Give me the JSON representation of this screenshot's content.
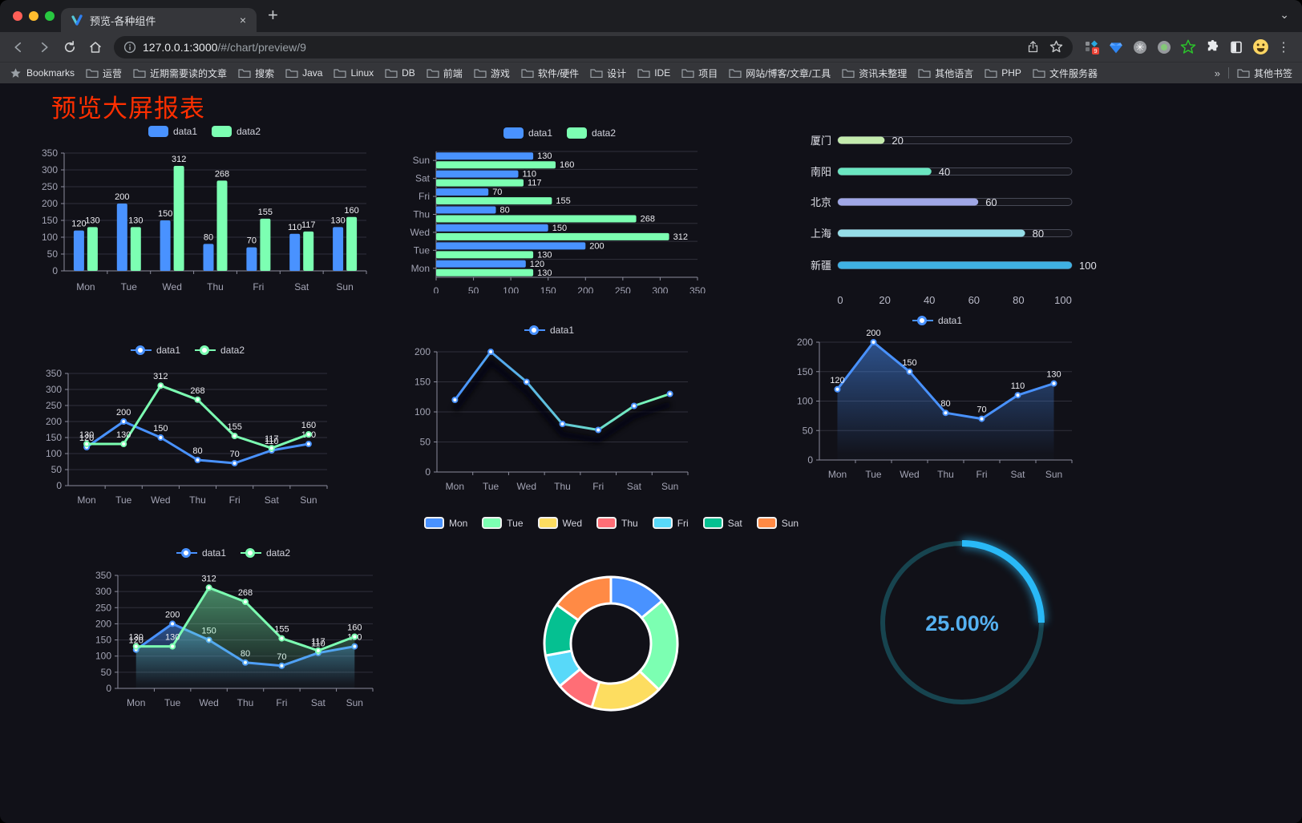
{
  "browser": {
    "tab": {
      "title": "预览-各种组件",
      "close": "×",
      "new_tab": "+",
      "chevron": "⌄"
    },
    "url": {
      "host": "127.0.0.1:3000",
      "path": "/#/chart/preview/9"
    },
    "extensions_badge": "9",
    "bookmarks": {
      "star_label": "Bookmarks",
      "folders": [
        "运营",
        "近期需要读的文章",
        "搜索",
        "Java",
        "Linux",
        "DB",
        "前端",
        "游戏",
        "软件/硬件",
        "设计",
        "IDE",
        "项目",
        "网站/博客/文章/工具",
        "资讯未整理",
        "其他语言",
        "PHP",
        "文件服务器"
      ],
      "overflow": "»",
      "other": "其他书签"
    }
  },
  "page": {
    "heading": "预览大屏报表",
    "heading_color": "#ff2f00",
    "background": "#111118"
  },
  "chart_data": [
    {
      "id": "bar-grouped",
      "type": "bar",
      "categories": [
        "Mon",
        "Tue",
        "Wed",
        "Thu",
        "Fri",
        "Sat",
        "Sun"
      ],
      "series": [
        {
          "name": "data1",
          "color": "#4992ff",
          "values": [
            120,
            200,
            150,
            80,
            70,
            110,
            130
          ]
        },
        {
          "name": "data2",
          "color": "#7cffb2",
          "values": [
            130,
            130,
            312,
            268,
            155,
            117,
            160
          ]
        }
      ],
      "ylim": [
        0,
        350
      ],
      "yticks": [
        0,
        50,
        100,
        150,
        200,
        250,
        300,
        350
      ],
      "legend": true,
      "labels": true
    },
    {
      "id": "bar-horizontal",
      "type": "bar-horizontal",
      "categories": [
        "Mon",
        "Tue",
        "Wed",
        "Thu",
        "Fri",
        "Sat",
        "Sun"
      ],
      "series": [
        {
          "name": "data1",
          "color": "#4992ff",
          "values": [
            120,
            200,
            150,
            80,
            70,
            110,
            130
          ]
        },
        {
          "name": "data2",
          "color": "#7cffb2",
          "values": [
            130,
            130,
            312,
            268,
            155,
            117,
            160
          ]
        }
      ],
      "xlim": [
        0,
        350
      ],
      "xticks": [
        0,
        50,
        100,
        150,
        200,
        250,
        300,
        350
      ],
      "legend": true,
      "labels": true
    },
    {
      "id": "progress-bars",
      "type": "hprogress",
      "rows": [
        {
          "label": "厦门",
          "value": 20,
          "color": "#c4ebad"
        },
        {
          "label": "南阳",
          "value": 40,
          "color": "#6be6c1"
        },
        {
          "label": "北京",
          "value": 60,
          "color": "#a0a7e6"
        },
        {
          "label": "上海",
          "value": 80,
          "color": "#96dee8"
        },
        {
          "label": "新疆",
          "value": 100,
          "color": "#3fb1e3"
        }
      ],
      "xlim": [
        0,
        100
      ],
      "xticks": [
        0,
        20,
        40,
        60,
        80,
        100
      ]
    },
    {
      "id": "line-multi",
      "type": "line",
      "categories": [
        "Mon",
        "Tue",
        "Wed",
        "Thu",
        "Fri",
        "Sat",
        "Sun"
      ],
      "series": [
        {
          "name": "data1",
          "color": "#4992ff",
          "values": [
            120,
            200,
            150,
            80,
            70,
            110,
            130
          ]
        },
        {
          "name": "data2",
          "color": "#7cffb2",
          "values": [
            130,
            130,
            312,
            268,
            155,
            117,
            160
          ]
        }
      ],
      "ylim": [
        0,
        350
      ],
      "yticks": [
        0,
        50,
        100,
        150,
        200,
        250,
        300,
        350
      ],
      "legend": true,
      "labels": true
    },
    {
      "id": "line-gradient",
      "type": "line",
      "categories": [
        "Mon",
        "Tue",
        "Wed",
        "Thu",
        "Fri",
        "Sat",
        "Sun"
      ],
      "series": [
        {
          "name": "data1",
          "color": "#4992ff",
          "gradient": [
            "#4992ff",
            "#7cffb2"
          ],
          "values": [
            120,
            200,
            150,
            80,
            70,
            110,
            130
          ]
        }
      ],
      "ylim": [
        0,
        200
      ],
      "yticks": [
        0,
        50,
        100,
        150,
        200
      ],
      "legend": true,
      "labels": false,
      "shadow": true
    },
    {
      "id": "area-single",
      "type": "line",
      "categories": [
        "Mon",
        "Tue",
        "Wed",
        "Thu",
        "Fri",
        "Sat",
        "Sun"
      ],
      "series": [
        {
          "name": "data1",
          "color": "#4992ff",
          "area": true,
          "values": [
            120,
            200,
            150,
            80,
            70,
            110,
            130
          ]
        }
      ],
      "ylim": [
        0,
        200
      ],
      "yticks": [
        0,
        50,
        100,
        150,
        200
      ],
      "legend": true,
      "labels": true
    },
    {
      "id": "area-multi",
      "type": "line",
      "categories": [
        "Mon",
        "Tue",
        "Wed",
        "Thu",
        "Fri",
        "Sat",
        "Sun"
      ],
      "series": [
        {
          "name": "data1",
          "color": "#4992ff",
          "area": true,
          "values": [
            120,
            200,
            150,
            80,
            70,
            110,
            130
          ]
        },
        {
          "name": "data2",
          "color": "#7cffb2",
          "area": true,
          "values": [
            130,
            130,
            312,
            268,
            155,
            117,
            160
          ]
        }
      ],
      "ylim": [
        0,
        350
      ],
      "yticks": [
        0,
        50,
        100,
        150,
        200,
        250,
        300,
        350
      ],
      "legend": true,
      "labels": true
    },
    {
      "id": "donut",
      "type": "pie",
      "categories": [
        "Mon",
        "Tue",
        "Wed",
        "Thu",
        "Fri",
        "Sat",
        "Sun"
      ],
      "values": [
        120,
        200,
        150,
        80,
        70,
        110,
        130
      ],
      "colors": [
        "#4992ff",
        "#7cffb2",
        "#fddd60",
        "#ff6e76",
        "#58d9f9",
        "#05c091",
        "#ff8a45"
      ],
      "border_color": "#ffffff",
      "legend": true
    },
    {
      "id": "gauge",
      "type": "gauge",
      "value": 25,
      "label": "25.00%",
      "arc_color": "#29b9f7",
      "track_color": "#17444f",
      "text_color": "#55b1f1"
    }
  ]
}
